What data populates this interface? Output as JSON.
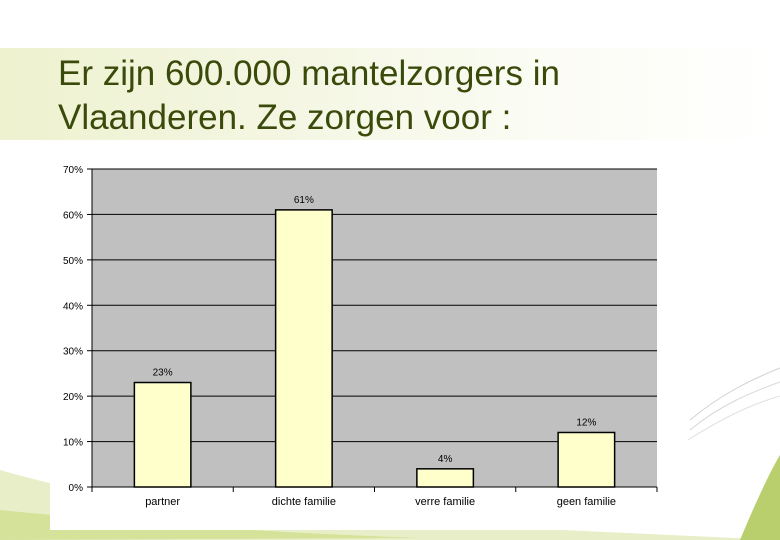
{
  "slide": {
    "title": "Er zijn 600.000 mantelzorgers in\nVlaanderen.  Ze zorgen voor :"
  },
  "colors": {
    "title": "#3a4a0a",
    "bar_fill": "#ffffcc",
    "plot_bg": "#c0c0c0",
    "accent_green": "#a6c25a"
  },
  "chart_data": {
    "type": "bar",
    "categories": [
      "partner",
      "dichte familie",
      "verre familie",
      "geen familie"
    ],
    "values": [
      23,
      61,
      4,
      12
    ],
    "data_labels": [
      "23%",
      "61%",
      "4%",
      "12%"
    ],
    "yticks": [
      "0%",
      "10%",
      "20%",
      "30%",
      "40%",
      "50%",
      "60%",
      "70%"
    ],
    "ylim": [
      0,
      70
    ],
    "grid": true,
    "legend": "none",
    "title": "",
    "xlabel": "",
    "ylabel": ""
  }
}
